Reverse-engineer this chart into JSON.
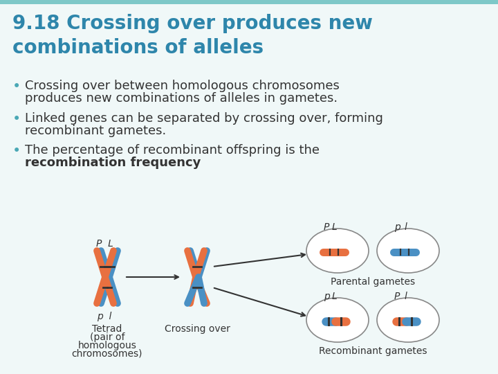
{
  "title": "9.18 Crossing over produces new\ncombinations of alleles",
  "title_color": "#2E86AB",
  "title_fontsize": 20,
  "bullet1_line1": "Crossing over between homologous chromosomes",
  "bullet1_line2": "produces new combinations of alleles in gametes.",
  "bullet2_line1": "Linked genes can be separated by crossing over, forming",
  "bullet2_line2": "recombinant gametes.",
  "bullet3_line1": "The percentage of recombinant offspring is the",
  "bullet3_bold": "recombination frequency",
  "bullet3_end": ".",
  "bullet_color": "#333333",
  "bullet_dot_color": "#4AA8B5",
  "bullet_fontsize": 13,
  "bg_color": "#F0F8F8",
  "top_bar_color": "#7EC8C8",
  "orange_chrom": "#E87040",
  "blue_chrom": "#4A90C4",
  "dark_band": "#333333",
  "arrow_color": "#333333",
  "text_tetrad": "Tetrad",
  "text_tetrad2": "(pair of",
  "text_tetrad3": "homologous",
  "text_tetrad4": "chromosomes)",
  "text_crossing": "Crossing over",
  "text_parental": "Parental gametes",
  "text_recombinant": "Recombinant gametes",
  "diagram_fontsize": 10,
  "ellipse_color": "#FFFFFF",
  "ellipse_edge": "#888888"
}
